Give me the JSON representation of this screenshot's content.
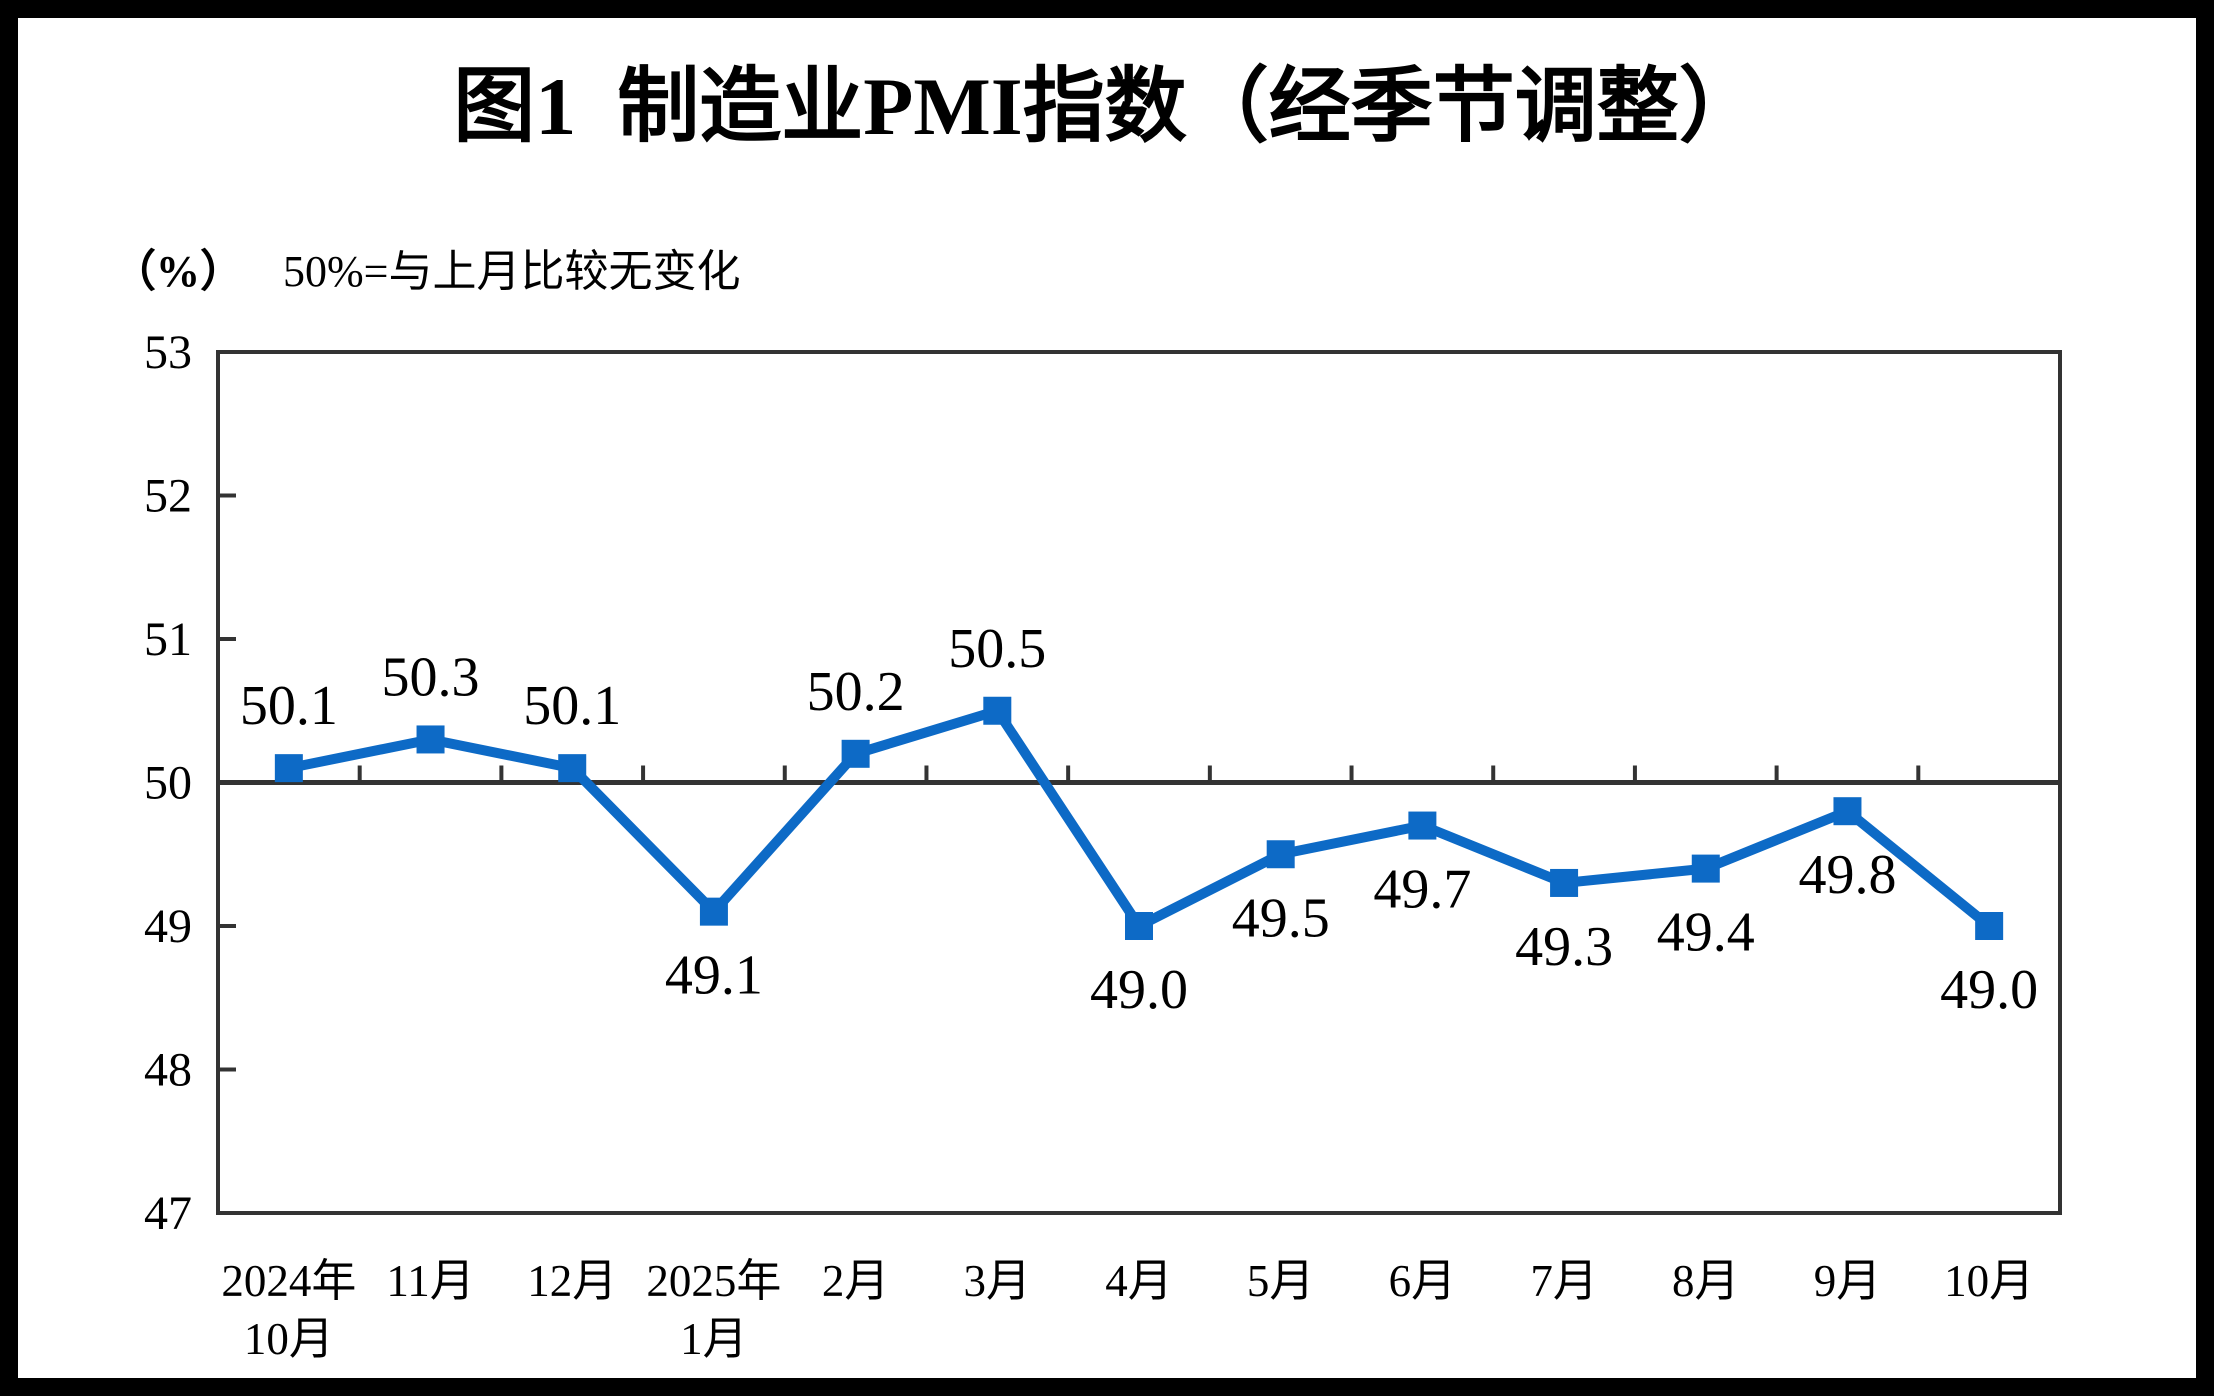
{
  "page": {
    "background_color": "#FFFFFF",
    "border_color": "#000000"
  },
  "chart_data": {
    "type": "line",
    "title": "图1 制造业PMI指数（经季节调整）",
    "unit_label": "（%）",
    "note": "50%=与上月比较无变化",
    "categories": [
      [
        "2024年",
        "10月"
      ],
      [
        "11月"
      ],
      [
        "12月"
      ],
      [
        "2025年",
        "1月"
      ],
      [
        "2月"
      ],
      [
        "3月"
      ],
      [
        "4月"
      ],
      [
        "5月"
      ],
      [
        "6月"
      ],
      [
        "7月"
      ],
      [
        "8月"
      ],
      [
        "9月"
      ],
      [
        "10月"
      ]
    ],
    "values": [
      50.1,
      50.3,
      50.1,
      49.1,
      50.2,
      50.5,
      49.0,
      49.5,
      49.7,
      49.3,
      49.4,
      49.8,
      49.0
    ],
    "labels": [
      "50.1",
      "50.3",
      "50.1",
      "49.1",
      "50.2",
      "50.5",
      "49.0",
      "49.5",
      "49.7",
      "49.3",
      "49.4",
      "49.8",
      "49.0"
    ],
    "ylim": [
      47,
      53
    ],
    "yticks": [
      47,
      48,
      49,
      50,
      51,
      52,
      53
    ],
    "reference_value": 50,
    "grid": false,
    "legend": "none",
    "colors": {
      "line": "#0D6AC6",
      "axis": "#333333",
      "text": "#000000"
    }
  }
}
